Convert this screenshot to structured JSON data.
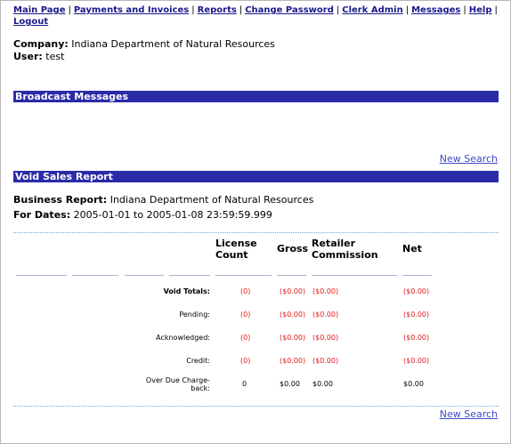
{
  "nav": {
    "links": [
      "Main Page",
      "Payments and Invoices",
      "Reports",
      "Change Password",
      "Clerk Admin",
      "Messages",
      "Help",
      "Logout"
    ]
  },
  "info": {
    "company_label": "Company:",
    "company_value": "Indiana Department of Natural Resources",
    "user_label": "User:",
    "user_value": "test"
  },
  "broadcast": {
    "title": "Broadcast Messages"
  },
  "new_search_label": "New Search",
  "void_report": {
    "title": "Void Sales Report",
    "business_label": "Business Report:",
    "business_value": "Indiana Department of Natural Resources",
    "dates_label": "For Dates:",
    "dates_value": "2005-01-01 to 2005-01-08 23:59:59.999"
  },
  "table": {
    "headers": {
      "license_count": [
        "License",
        "Count"
      ],
      "gross": "Gross",
      "retailer_commission": [
        "Retailer",
        "Commission"
      ],
      "net": "Net"
    },
    "rows": [
      {
        "label": [
          "Void Totals:"
        ],
        "bold": true,
        "red": true,
        "count": "(0)",
        "gross": "($0.00)",
        "commission": "($0.00)",
        "net": "($0.00)"
      },
      {
        "label": [
          "Pending:"
        ],
        "bold": false,
        "red": true,
        "count": "(0)",
        "gross": "($0.00)",
        "commission": "($0.00)",
        "net": "($0.00)"
      },
      {
        "label": [
          "Acknowledged:"
        ],
        "bold": false,
        "red": true,
        "count": "(0)",
        "gross": "($0.00)",
        "commission": "($0.00)",
        "net": "($0.00)"
      },
      {
        "label": [
          "Credit:"
        ],
        "bold": false,
        "red": true,
        "count": "(0)",
        "gross": "($0.00)",
        "commission": "($0.00)",
        "net": "($0.00)"
      },
      {
        "label": [
          "Over Due Charge-",
          "back:"
        ],
        "bold": false,
        "red": false,
        "count": "0",
        "gross": "$0.00",
        "commission": "$0.00",
        "net": "$0.00"
      }
    ]
  },
  "colors": {
    "bar_bg": "#2b2ba8",
    "link": "#1a1a8c",
    "accent_red": "#e01818"
  }
}
